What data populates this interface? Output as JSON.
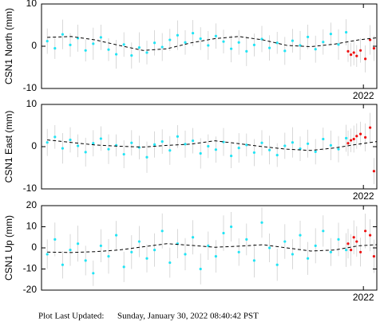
{
  "chart_data": [
    {
      "type": "scatter",
      "ylabel": "CSN1 North (mm)",
      "xlim": [
        2018.64,
        2022.14
      ],
      "xticks": [
        2022
      ],
      "ylim": [
        -10,
        10
      ],
      "yticks": [
        -10,
        0,
        10
      ],
      "series": [
        {
          "color": "#22e4f4",
          "x": [
            2018.7,
            2018.78,
            2018.86,
            2018.94,
            2019.02,
            2019.1,
            2019.18,
            2019.26,
            2019.34,
            2019.42,
            2019.5,
            2019.58,
            2019.66,
            2019.74,
            2019.82,
            2019.9,
            2019.98,
            2020.06,
            2020.14,
            2020.22,
            2020.3,
            2020.38,
            2020.46,
            2020.54,
            2020.62,
            2020.7,
            2020.78,
            2020.86,
            2020.94,
            2021.02,
            2021.1,
            2021.18,
            2021.26,
            2021.34,
            2021.42,
            2021.5,
            2021.58,
            2021.66,
            2021.74,
            2021.82
          ],
          "values": [
            1.2,
            -0.5,
            2.8,
            0.3,
            1.9,
            -1.0,
            0.6,
            2.1,
            -0.8,
            -1.9,
            0.4,
            -2.2,
            -0.3,
            -1.5,
            0.8,
            -0.2,
            1.5,
            2.6,
            0.9,
            3.1,
            1.8,
            0.2,
            2.4,
            1.1,
            -0.6,
            0.9,
            -1.2,
            0.3,
            1.7,
            -0.4,
            0.8,
            -1.1,
            1.3,
            0.2,
            2.2,
            -0.7,
            1.0,
            2.9,
            0.4,
            3.3
          ],
          "errors": [
            3,
            2.5,
            3.5,
            2.8,
            3.2,
            2.6,
            3.8,
            3,
            2.7,
            3.4,
            2.9,
            3.1,
            3.6,
            2.8,
            3,
            3.3,
            2.6,
            3.5,
            2.9,
            3.1,
            2.7,
            3.4,
            3,
            2.8,
            3.2,
            2.9,
            3.5,
            2.7,
            3.1,
            3,
            2.6,
            3.3,
            2.8,
            3.4,
            2.9,
            3.2,
            3,
            2.7,
            3.6,
            3.1
          ]
        },
        {
          "color": "#ee1111",
          "x": [
            2021.84,
            2021.87,
            2021.9,
            2021.93,
            2021.97,
            2022.02,
            2022.07,
            2022.11
          ],
          "values": [
            -1.2,
            -2.0,
            -1.5,
            -2.3,
            -1.0,
            -3.0,
            1.5,
            -0.5
          ],
          "errors": [
            2.5,
            2.8,
            3,
            2.6,
            2.9,
            3.2,
            3.5,
            3
          ]
        },
        {
          "color": "#000000",
          "style": "dashed",
          "x": [
            2018.7,
            2018.95,
            2019.2,
            2019.45,
            2019.7,
            2019.95,
            2020.2,
            2020.45,
            2020.7,
            2020.95,
            2021.2,
            2021.45,
            2021.7,
            2021.95,
            2022.14
          ],
          "values": [
            2.1,
            2.3,
            1.5,
            0.2,
            -1.0,
            -0.6,
            0.8,
            1.8,
            2.3,
            1.5,
            0.2,
            -0.1,
            0.5,
            1.5,
            2.0
          ]
        }
      ]
    },
    {
      "type": "scatter",
      "ylabel": "CSN1 East (mm)",
      "xlim": [
        2018.64,
        2022.14
      ],
      "xticks": [
        2022
      ],
      "ylim": [
        -10,
        10
      ],
      "yticks": [
        -10,
        0,
        10
      ],
      "series": [
        {
          "color": "#22e4f4",
          "x": [
            2018.7,
            2018.78,
            2018.86,
            2018.94,
            2019.02,
            2019.1,
            2019.18,
            2019.26,
            2019.34,
            2019.42,
            2019.5,
            2019.58,
            2019.66,
            2019.74,
            2019.82,
            2019.9,
            2019.98,
            2020.06,
            2020.14,
            2020.22,
            2020.3,
            2020.38,
            2020.46,
            2020.54,
            2020.62,
            2020.7,
            2020.78,
            2020.86,
            2020.94,
            2021.02,
            2021.1,
            2021.18,
            2021.26,
            2021.34,
            2021.42,
            2021.5,
            2021.58,
            2021.66,
            2021.74,
            2021.82
          ],
          "values": [
            1.0,
            2.3,
            -0.4,
            1.6,
            0.2,
            -1.3,
            0.8,
            1.9,
            -0.6,
            0.3,
            -1.8,
            0.9,
            -0.2,
            -2.5,
            0.5,
            1.2,
            -0.9,
            2.4,
            0.6,
            1.4,
            -1.6,
            0.1,
            -0.7,
            1.1,
            -2.2,
            -0.3,
            0.4,
            -1.4,
            0.9,
            -0.8,
            -2.0,
            0.2,
            1.0,
            -0.5,
            0.7,
            -1.2,
            1.8,
            0.3,
            -0.6,
            2.0
          ],
          "errors": [
            3.2,
            2.8,
            3.6,
            3,
            2.7,
            3.4,
            3.1,
            2.9,
            3.5,
            2.6,
            3.3,
            3,
            2.8,
            3.7,
            3.1,
            2.9,
            3.4,
            2.7,
            3.2,
            3,
            3.6,
            2.8,
            3.1,
            3.3,
            2.9,
            3.5,
            2.7,
            3.2,
            3,
            3.4,
            2.8,
            3.1,
            3.6,
            2.9,
            3.3,
            3,
            2.7,
            3.5,
            3.1,
            3.2
          ]
        },
        {
          "color": "#ee1111",
          "x": [
            2021.84,
            2021.87,
            2021.9,
            2021.93,
            2021.97,
            2022.02,
            2022.07,
            2022.11
          ],
          "values": [
            0.8,
            1.5,
            1.8,
            2.5,
            3.0,
            2.2,
            4.5,
            -5.8
          ],
          "errors": [
            3,
            2.8,
            3.2,
            3,
            2.9,
            3.3,
            3.5,
            3.1
          ]
        },
        {
          "color": "#000000",
          "style": "dashed",
          "x": [
            2018.7,
            2018.95,
            2019.2,
            2019.45,
            2019.7,
            2019.95,
            2020.2,
            2020.45,
            2020.7,
            2020.95,
            2021.2,
            2021.45,
            2021.7,
            2021.95,
            2022.14
          ],
          "values": [
            1.6,
            1.0,
            0.4,
            0.1,
            -0.1,
            0.3,
            0.6,
            1.4,
            0.7,
            0.0,
            -0.6,
            -0.9,
            -0.3,
            0.6,
            1.2
          ]
        }
      ]
    },
    {
      "type": "scatter",
      "ylabel": "CSN1 Up (mm)",
      "xlim": [
        2018.64,
        2022.14
      ],
      "xticks": [
        2022
      ],
      "ylim": [
        -20,
        20
      ],
      "yticks": [
        -20,
        -10,
        0,
        10,
        20
      ],
      "series": [
        {
          "color": "#22e4f4",
          "x": [
            2018.7,
            2018.78,
            2018.86,
            2018.94,
            2019.02,
            2019.1,
            2019.18,
            2019.26,
            2019.34,
            2019.42,
            2019.5,
            2019.58,
            2019.66,
            2019.74,
            2019.82,
            2019.9,
            2019.98,
            2020.06,
            2020.14,
            2020.22,
            2020.3,
            2020.38,
            2020.46,
            2020.54,
            2020.62,
            2020.7,
            2020.78,
            2020.86,
            2020.94,
            2021.02,
            2021.1,
            2021.18,
            2021.26,
            2021.34,
            2021.42,
            2021.5,
            2021.58,
            2021.66,
            2021.74,
            2021.82
          ],
          "values": [
            -3,
            4,
            -8,
            -1,
            2,
            -6,
            -12,
            1,
            -4,
            6,
            -9,
            -2,
            3,
            -5,
            -1,
            8,
            -7,
            2,
            -3,
            5,
            -10,
            1,
            -4,
            7,
            10,
            -2,
            4,
            -6,
            12,
            0,
            -8,
            3,
            -3,
            6,
            -5,
            1,
            8,
            -2,
            4,
            -1
          ],
          "errors": [
            7,
            8,
            6.5,
            7.5,
            8.5,
            7,
            6,
            7.8,
            8.2,
            6.8,
            7.2,
            8,
            7.4,
            6.6,
            7.9,
            8.3,
            7.1,
            6.9,
            7.6,
            8.1,
            7.3,
            6.7,
            7.7,
            8.4,
            7,
            6.5,
            7.5,
            8,
            7.2,
            6.8,
            7.6,
            8.2,
            7.1,
            6.9,
            7.8,
            8.3,
            7.4,
            6.6,
            7.9,
            8
          ]
        },
        {
          "color": "#ee1111",
          "x": [
            2021.84,
            2021.87,
            2021.9,
            2021.93,
            2021.97,
            2022.02,
            2022.07,
            2022.11
          ],
          "values": [
            2,
            -1,
            5,
            3,
            -2,
            8,
            6,
            -4
          ],
          "errors": [
            7,
            7.5,
            8,
            7.2,
            6.8,
            8.2,
            7.6,
            7.9
          ]
        },
        {
          "color": "#000000",
          "style": "dashed",
          "x": [
            2018.7,
            2018.95,
            2019.2,
            2019.45,
            2019.7,
            2019.95,
            2020.2,
            2020.45,
            2020.7,
            2020.95,
            2021.2,
            2021.45,
            2021.7,
            2021.95,
            2022.14
          ],
          "values": [
            -2,
            -2.2,
            -1.8,
            -1,
            0.5,
            2,
            1.2,
            0.3,
            0.8,
            1.5,
            0,
            -1.5,
            -1,
            1,
            1.5
          ]
        }
      ]
    }
  ],
  "footer": {
    "label": "Plot Last Updated:",
    "timestamp": "Sunday, January 30, 2022 08:40:42 PST"
  }
}
